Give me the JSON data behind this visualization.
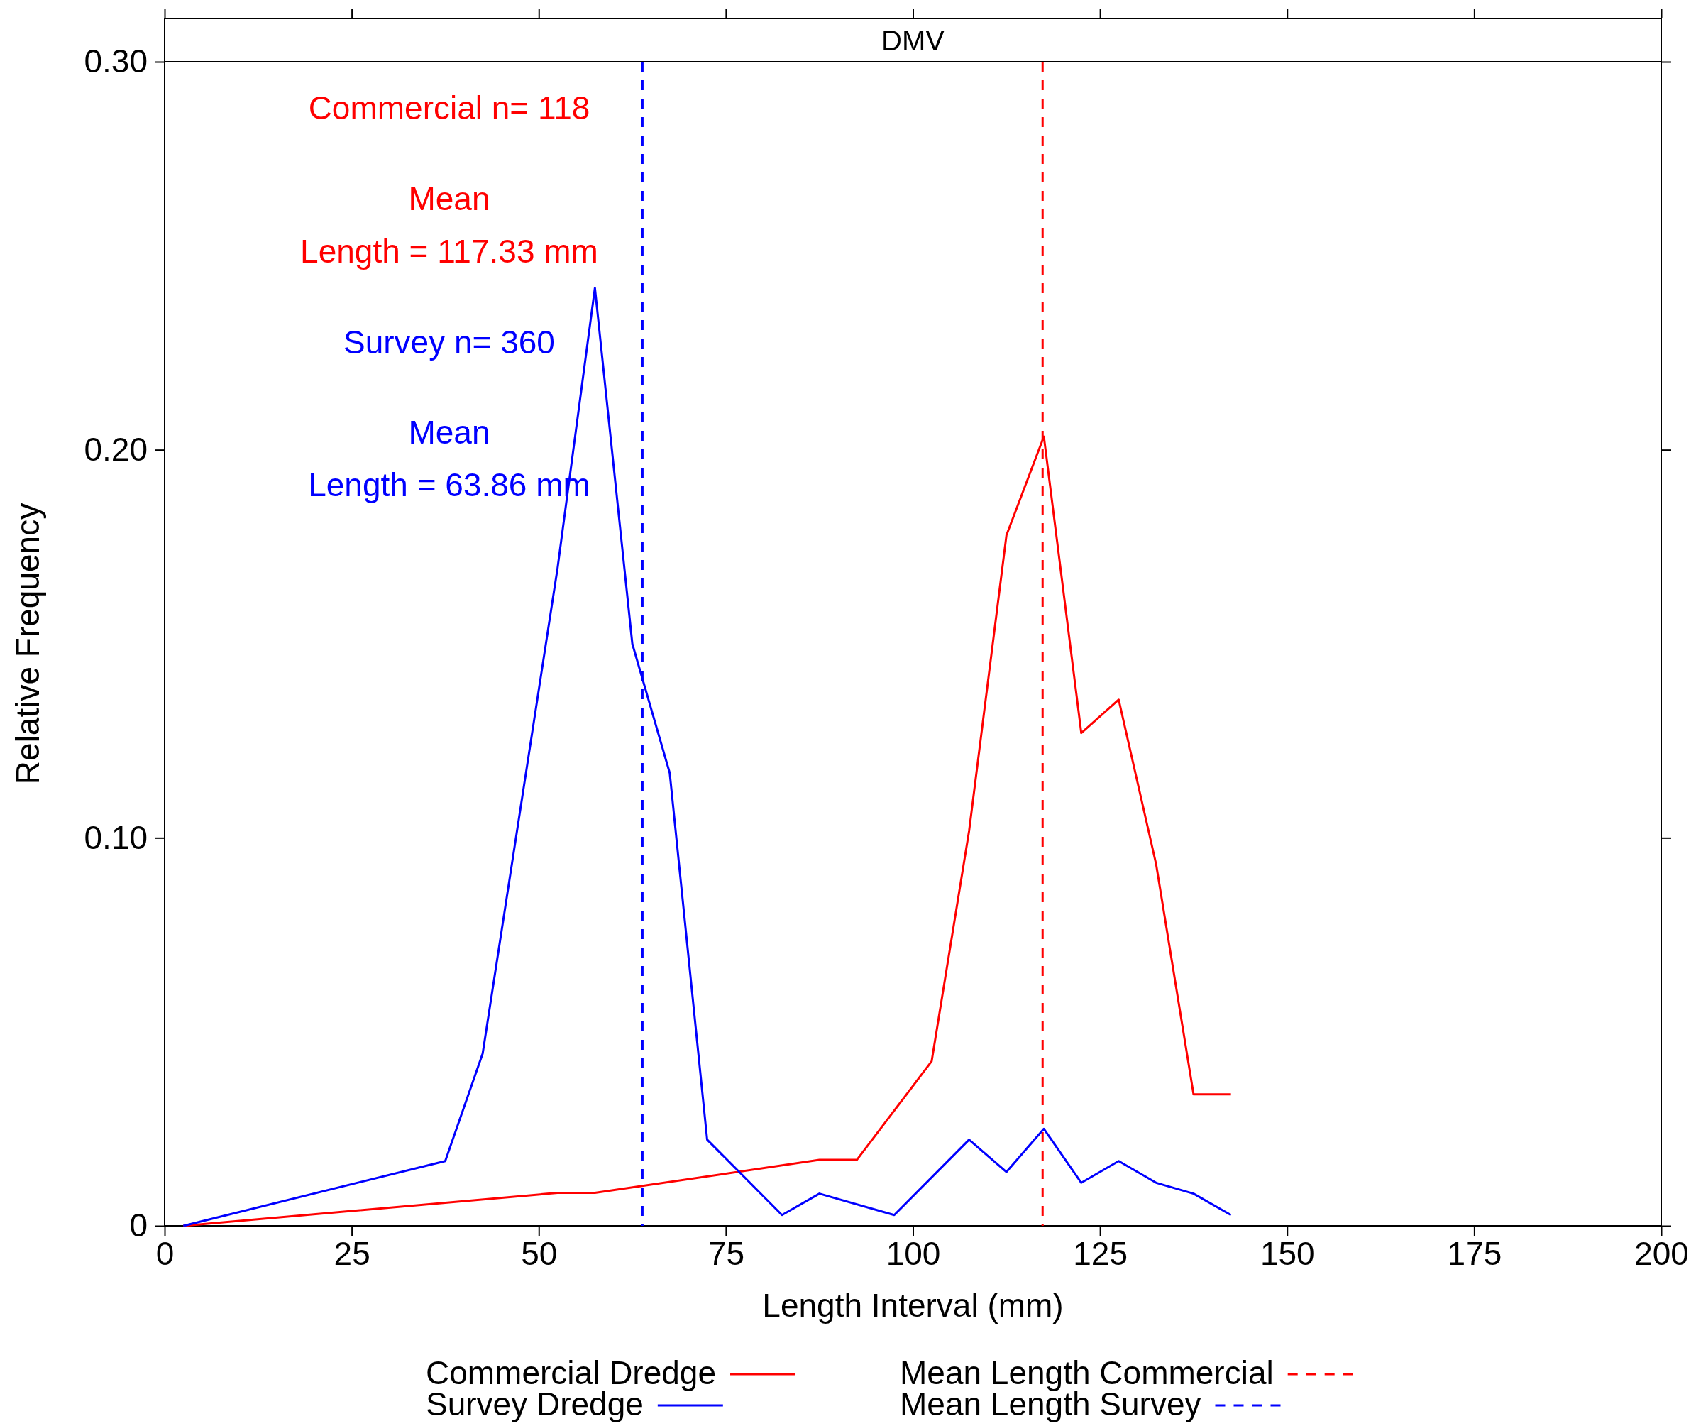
{
  "chart_data": {
    "type": "line",
    "title": "DMV",
    "xlabel": "Length Interval (mm)",
    "ylabel": "Relative Frequency",
    "xlim": [
      0,
      200
    ],
    "xticks": [
      0,
      25,
      50,
      75,
      100,
      125,
      150,
      175,
      200
    ],
    "ylim": [
      0,
      0.3
    ],
    "yticks": [
      0,
      {
        "value": 0.1,
        "label": "0.10"
      },
      {
        "value": 0.2,
        "label": "0.20"
      },
      {
        "value": 0.3,
        "label": "0.30"
      }
    ],
    "grid": false,
    "legend": "bottom",
    "line_style": "solid",
    "marker": "none",
    "series": [
      {
        "name": "Commercial Dredge",
        "color": "#ff0000",
        "x": [
          2.5,
          52.5,
          57.5,
          87.5,
          92.5,
          102.5,
          107.5,
          112.5,
          117.5,
          122.5,
          127.5,
          132.5,
          137.5,
          142.5
        ],
        "values": [
          0,
          0.0085,
          0.0085,
          0.017,
          0.017,
          0.0424,
          0.1017,
          0.178,
          0.2034,
          0.127,
          0.1356,
          0.0932,
          0.0339,
          0.0339
        ]
      },
      {
        "name": "Survey Dredge",
        "color": "#0000ff",
        "x": [
          2.5,
          37.5,
          42.5,
          52.5,
          57.5,
          62.5,
          67.5,
          72.5,
          82.5,
          87.5,
          97.5,
          107.5,
          112.5,
          117.5,
          122.5,
          127.5,
          132.5,
          137.5,
          142.5
        ],
        "values": [
          0,
          0.0167,
          0.0444,
          0.1694,
          0.2417,
          0.15,
          0.1167,
          0.0222,
          0.0028,
          0.0083,
          0.0028,
          0.0222,
          0.0139,
          0.025,
          0.0111,
          0.0167,
          0.0111,
          0.0083,
          0.0028
        ]
      }
    ],
    "ref_lines": [
      {
        "axis": "x",
        "value": 117.33,
        "label": "Mean Length Commercial",
        "color": "#ff0000",
        "line_style": "dashed"
      },
      {
        "axis": "x",
        "value": 63.86,
        "label": "Mean Length Survey",
        "color": "#0000ff",
        "line_style": "dashed"
      }
    ],
    "annotations": [
      "Commercial n= 118",
      "Mean",
      "Length = 117.33 mm",
      "Survey n= 360",
      "Mean",
      "Length = 63.86 mm"
    ]
  }
}
